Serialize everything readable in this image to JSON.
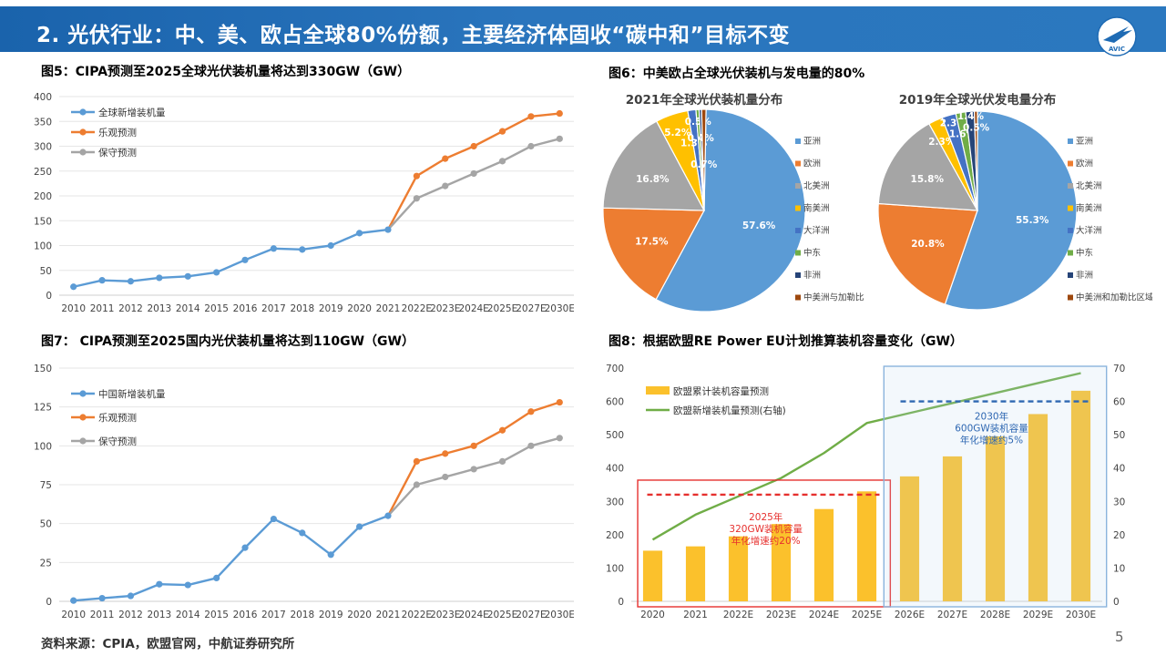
{
  "header": {
    "title": "2. 光伏行业：中、美、欧占全球80%份额，主要经济体固收“碳中和”目标不变",
    "logo_text": "AVIC",
    "colors": {
      "bar": "#1f6bb4",
      "text": "#ffffff"
    }
  },
  "footer": {
    "source": "资料来源：CPIA，欧盟官网，中航证券研究所",
    "page": "5"
  },
  "chart_data": [
    {
      "id": "fig5",
      "type": "line",
      "title": "图5：CIPA预测至2025全球光伏装机量将达到330GW（GW）",
      "categories": [
        "2010",
        "2011",
        "2012",
        "2013",
        "2014",
        "2015",
        "2016",
        "2017",
        "2018",
        "2019",
        "2020",
        "2021",
        "2022E",
        "2023E",
        "2024E",
        "2025E",
        "2027E",
        "2030E"
      ],
      "ylim": [
        0,
        400
      ],
      "yticks": [
        0,
        50,
        100,
        150,
        200,
        250,
        300,
        350,
        400
      ],
      "legend_position": "top-left",
      "series": [
        {
          "name": "全球新增装机量",
          "color": "#5b9bd5",
          "values": [
            17,
            30,
            28,
            35,
            38,
            46,
            71,
            94,
            92,
            100,
            125,
            132,
            null,
            null,
            null,
            null,
            null,
            null
          ]
        },
        {
          "name": "乐观预测",
          "color": "#ed7d31",
          "values": [
            null,
            null,
            null,
            null,
            null,
            null,
            null,
            null,
            null,
            null,
            null,
            132,
            240,
            275,
            300,
            330,
            360,
            366
          ]
        },
        {
          "name": "保守预测",
          "color": "#a5a5a5",
          "values": [
            null,
            null,
            null,
            null,
            null,
            null,
            null,
            null,
            null,
            null,
            null,
            132,
            195,
            220,
            245,
            270,
            300,
            315
          ]
        }
      ]
    },
    {
      "id": "fig6",
      "type": "pie",
      "title": "图6：中美欧占全球光伏装机与发电量的80%",
      "pies": [
        {
          "name": "2021年全球光伏装机量分布",
          "labels": [
            "亚洲",
            "欧洲",
            "北美洲",
            "南美洲",
            "大洋洲",
            "中东",
            "非洲",
            "中美洲与加勒比"
          ],
          "values": [
            57.6,
            17.5,
            16.8,
            5.2,
            1.3,
            0.5,
            0.4,
            0.7
          ],
          "value_labels": [
            "57.6%",
            "17.5%",
            "16.8%",
            "5.2%",
            "1.3%",
            "0.5%",
            "0.4%",
            "0.7%"
          ],
          "colors": [
            "#5b9bd5",
            "#ed7d31",
            "#a5a5a5",
            "#ffc000",
            "#4472c4",
            "#70ad47",
            "#264478",
            "#9e480e"
          ]
        },
        {
          "name": "2019年全球光伏发电量分布",
          "labels": [
            "亚洲",
            "欧洲",
            "北美洲",
            "南美洲",
            "大洋洲",
            "中东",
            "非洲",
            "中美洲和加勒比区域"
          ],
          "values": [
            55.3,
            20.8,
            15.8,
            2.3,
            2.3,
            1.6,
            1.4,
            0.5
          ],
          "value_labels": [
            "55.3%",
            "20.8%",
            "15.8%",
            "2.3%",
            "2.3%",
            "1.6%",
            "1.4%",
            "0.5%"
          ],
          "colors": [
            "#5b9bd5",
            "#ed7d31",
            "#a5a5a5",
            "#ffc000",
            "#4472c4",
            "#70ad47",
            "#264478",
            "#9e480e"
          ]
        }
      ]
    },
    {
      "id": "fig7",
      "type": "line",
      "title": "图7： CIPA预测至2025国内光伏装机量将达到110GW（GW）",
      "categories": [
        "2010",
        "2011",
        "2012",
        "2013",
        "2014",
        "2015",
        "2016",
        "2017",
        "2018",
        "2019",
        "2020",
        "2021",
        "2022E",
        "2023E",
        "2024E",
        "2025E",
        "2027E",
        "2030E"
      ],
      "ylim": [
        0,
        150
      ],
      "yticks": [
        0,
        25,
        50,
        75,
        100,
        125,
        150
      ],
      "legend_position": "top-left",
      "series": [
        {
          "name": "中国新增装机量",
          "color": "#5b9bd5",
          "values": [
            0.5,
            2,
            3.5,
            11,
            10.5,
            15,
            34.5,
            53,
            44,
            30,
            48,
            55,
            null,
            null,
            null,
            null,
            null,
            null
          ]
        },
        {
          "name": "乐观预测",
          "color": "#ed7d31",
          "values": [
            null,
            null,
            null,
            null,
            null,
            null,
            null,
            null,
            null,
            null,
            null,
            55,
            90,
            95,
            100,
            110,
            122,
            128
          ]
        },
        {
          "name": "保守预测",
          "color": "#a5a5a5",
          "values": [
            null,
            null,
            null,
            null,
            null,
            null,
            null,
            null,
            null,
            null,
            null,
            55,
            75,
            80,
            85,
            90,
            100,
            105
          ]
        }
      ]
    },
    {
      "id": "fig8",
      "type": "bar",
      "title": "图8：根据欧盟RE Power EU计划推算装机容量变化（GW）",
      "categories": [
        "2020",
        "2021",
        "2022E",
        "2023E",
        "2024E",
        "2025E",
        "2026E",
        "2027E",
        "2028E",
        "2029E",
        "2030E"
      ],
      "ylim": [
        0,
        700
      ],
      "yticks": [
        0,
        100,
        200,
        300,
        400,
        500,
        600,
        700
      ],
      "y2lim": [
        0,
        70
      ],
      "y2ticks": [
        0,
        10,
        20,
        30,
        40,
        50,
        60,
        70
      ],
      "legend_position": "top-left",
      "series": [
        {
          "name": "欧盟累计装机容量预测",
          "type": "bar",
          "axis": "left",
          "color": "#fbc12c",
          "values": [
            152,
            165,
            195,
            232,
            277,
            330,
            375,
            435,
            495,
            562,
            632
          ]
        },
        {
          "name": "欧盟新增装机量预测(右轴)",
          "type": "line",
          "axis": "right",
          "color": "#70ad47",
          "values": [
            18.5,
            26,
            31.5,
            37,
            44.5,
            53.5,
            56.5,
            59.5,
            62.5,
            65.5,
            68.5
          ]
        }
      ],
      "annotations": [
        {
          "text": [
            "2025年",
            "320GW装机容量",
            "年化增速约20%"
          ],
          "color": "#e6302e",
          "ref_value": 320
        },
        {
          "text": [
            "2030年",
            "600GW装机容量",
            "年化增速约5%"
          ],
          "color": "#2e67b2",
          "ref_value": 600
        }
      ]
    }
  ]
}
